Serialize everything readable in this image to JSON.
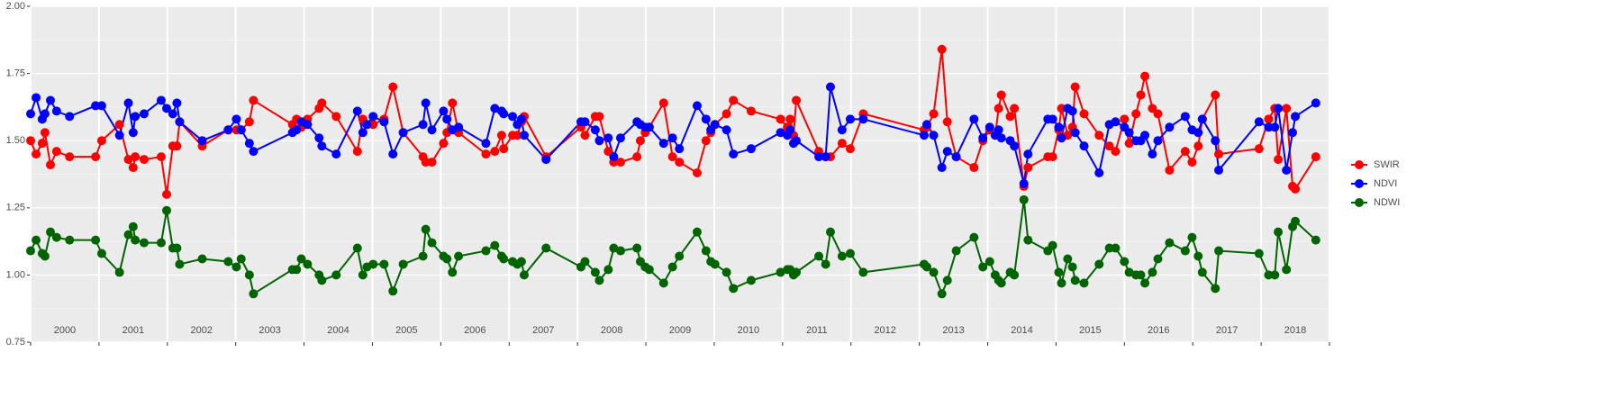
{
  "chart_data": {
    "type": "line",
    "x": [
      2000.0,
      2000.08,
      2000.17,
      2000.21,
      2000.29,
      2000.38,
      2000.57,
      2000.95,
      2001.04,
      2001.3,
      2001.43,
      2001.5,
      2001.53,
      2001.66,
      2001.91,
      2001.99,
      2002.08,
      2002.14,
      2002.18,
      2002.51,
      2002.89,
      2003.01,
      2003.08,
      2003.2,
      2003.26,
      2003.83,
      2003.89,
      2003.96,
      2004.05,
      2004.22,
      2004.26,
      2004.47,
      2004.78,
      2004.86,
      2004.92,
      2005.01,
      2005.17,
      2005.3,
      2005.45,
      2005.74,
      2005.78,
      2005.87,
      2006.04,
      2006.09,
      2006.17,
      2006.26,
      2006.66,
      2006.79,
      2006.89,
      2006.92,
      2007.05,
      2007.12,
      2007.18,
      2007.22,
      2007.54,
      2008.05,
      2008.11,
      2008.26,
      2008.32,
      2008.45,
      2008.53,
      2008.63,
      2008.87,
      2008.92,
      2008.99,
      2009.05,
      2009.26,
      2009.39,
      2009.49,
      2009.75,
      2009.88,
      2009.95,
      2010.01,
      2010.18,
      2010.28,
      2010.54,
      2010.97,
      2011.07,
      2011.11,
      2011.16,
      2011.2,
      2011.53,
      2011.63,
      2011.7,
      2011.87,
      2011.99,
      2012.18,
      2013.07,
      2013.11,
      2013.21,
      2013.33,
      2013.41,
      2013.54,
      2013.8,
      2013.93,
      2014.03,
      2014.11,
      2014.16,
      2014.2,
      2014.33,
      2014.39,
      2014.53,
      2014.59,
      2014.88,
      2014.95,
      2015.04,
      2015.08,
      2015.17,
      2015.24,
      2015.28,
      2015.41,
      2015.63,
      2015.78,
      2015.87,
      2016.0,
      2016.07,
      2016.17,
      2016.24,
      2016.3,
      2016.41,
      2016.49,
      2016.66,
      2016.89,
      2016.99,
      2017.08,
      2017.14,
      2017.33,
      2017.38,
      2017.97,
      2018.11,
      2018.2,
      2018.25,
      2018.37,
      2018.46,
      2018.5,
      2018.8
    ],
    "series": [
      {
        "name": "SWIR",
        "color": "#ff0000",
        "values": [
          1.5,
          1.45,
          1.49,
          1.53,
          1.41,
          1.46,
          1.44,
          1.44,
          1.5,
          1.56,
          1.43,
          1.4,
          1.44,
          1.43,
          1.44,
          1.3,
          1.48,
          1.48,
          1.57,
          1.48,
          1.54,
          1.54,
          1.54,
          1.57,
          1.65,
          1.56,
          1.58,
          1.55,
          1.58,
          1.62,
          1.64,
          1.59,
          1.46,
          1.58,
          1.56,
          1.56,
          1.58,
          1.7,
          1.53,
          1.44,
          1.42,
          1.42,
          1.49,
          1.53,
          1.64,
          1.53,
          1.45,
          1.46,
          1.52,
          1.47,
          1.52,
          1.52,
          1.57,
          1.59,
          1.44,
          1.55,
          1.52,
          1.59,
          1.59,
          1.46,
          1.42,
          1.42,
          1.44,
          1.5,
          1.53,
          1.55,
          1.64,
          1.44,
          1.42,
          1.38,
          1.5,
          1.53,
          1.56,
          1.6,
          1.65,
          1.61,
          1.58,
          1.55,
          1.58,
          1.52,
          1.65,
          1.46,
          1.44,
          1.44,
          1.49,
          1.47,
          1.6,
          1.54,
          1.55,
          1.6,
          1.84,
          1.57,
          1.44,
          1.4,
          1.5,
          1.54,
          1.52,
          1.62,
          1.67,
          1.59,
          1.62,
          1.33,
          1.4,
          1.44,
          1.44,
          1.54,
          1.62,
          1.52,
          1.55,
          1.7,
          1.6,
          1.52,
          1.48,
          1.46,
          1.58,
          1.49,
          1.6,
          1.67,
          1.74,
          1.62,
          1.6,
          1.39,
          1.46,
          1.42,
          1.48,
          1.58,
          1.67,
          1.45,
          1.47,
          1.58,
          1.62,
          1.43,
          1.62,
          1.33,
          1.32,
          1.44
        ]
      },
      {
        "name": "NDVI",
        "color": "#0000ff",
        "values": [
          1.6,
          1.66,
          1.58,
          1.6,
          1.65,
          1.61,
          1.59,
          1.63,
          1.63,
          1.52,
          1.64,
          1.53,
          1.59,
          1.6,
          1.65,
          1.62,
          1.6,
          1.64,
          1.57,
          1.5,
          1.54,
          1.58,
          1.54,
          1.49,
          1.46,
          1.53,
          1.54,
          1.57,
          1.56,
          1.51,
          1.48,
          1.45,
          1.61,
          1.53,
          1.56,
          1.59,
          1.57,
          1.45,
          1.53,
          1.56,
          1.64,
          1.54,
          1.61,
          1.58,
          1.54,
          1.55,
          1.49,
          1.62,
          1.61,
          1.6,
          1.59,
          1.56,
          1.58,
          1.52,
          1.43,
          1.57,
          1.57,
          1.54,
          1.5,
          1.51,
          1.44,
          1.51,
          1.57,
          1.56,
          1.55,
          1.55,
          1.49,
          1.51,
          1.47,
          1.63,
          1.58,
          1.54,
          1.56,
          1.54,
          1.45,
          1.47,
          1.53,
          1.52,
          1.54,
          1.49,
          1.5,
          1.44,
          1.44,
          1.7,
          1.54,
          1.58,
          1.58,
          1.52,
          1.56,
          1.52,
          1.4,
          1.46,
          1.44,
          1.58,
          1.51,
          1.55,
          1.52,
          1.54,
          1.51,
          1.5,
          1.48,
          1.34,
          1.45,
          1.58,
          1.58,
          1.55,
          1.51,
          1.62,
          1.61,
          1.53,
          1.48,
          1.38,
          1.56,
          1.57,
          1.55,
          1.53,
          1.5,
          1.5,
          1.52,
          1.45,
          1.5,
          1.55,
          1.59,
          1.54,
          1.53,
          1.58,
          1.5,
          1.39,
          1.57,
          1.55,
          1.55,
          1.62,
          1.39,
          1.53,
          1.59,
          1.64
        ]
      },
      {
        "name": "NDWI",
        "color": "#006400",
        "values": [
          1.09,
          1.13,
          1.08,
          1.07,
          1.16,
          1.14,
          1.13,
          1.13,
          1.08,
          1.01,
          1.15,
          1.18,
          1.13,
          1.12,
          1.12,
          1.24,
          1.1,
          1.1,
          1.04,
          1.06,
          1.05,
          1.03,
          1.06,
          1.0,
          0.93,
          1.02,
          1.02,
          1.06,
          1.04,
          1.0,
          0.98,
          1.0,
          1.1,
          1.0,
          1.03,
          1.04,
          1.04,
          0.94,
          1.04,
          1.07,
          1.17,
          1.12,
          1.07,
          1.06,
          1.01,
          1.07,
          1.09,
          1.11,
          1.07,
          1.06,
          1.05,
          1.04,
          1.05,
          1.0,
          1.1,
          1.03,
          1.05,
          1.01,
          0.98,
          1.02,
          1.1,
          1.09,
          1.1,
          1.05,
          1.03,
          1.02,
          0.97,
          1.03,
          1.07,
          1.16,
          1.09,
          1.05,
          1.04,
          1.01,
          0.95,
          0.98,
          1.01,
          1.02,
          1.02,
          1.0,
          1.01,
          1.07,
          1.04,
          1.16,
          1.07,
          1.08,
          1.01,
          1.04,
          1.03,
          1.01,
          0.93,
          0.98,
          1.09,
          1.14,
          1.03,
          1.05,
          1.0,
          0.98,
          0.97,
          1.01,
          1.0,
          1.28,
          1.13,
          1.09,
          1.11,
          1.01,
          0.97,
          1.06,
          1.03,
          0.98,
          0.97,
          1.04,
          1.1,
          1.1,
          1.05,
          1.01,
          1.0,
          1.0,
          0.97,
          1.01,
          1.06,
          1.12,
          1.09,
          1.14,
          1.07,
          1.01,
          0.95,
          1.09,
          1.08,
          1.0,
          1.0,
          1.16,
          1.02,
          1.18,
          1.2,
          1.13
        ]
      }
    ],
    "xlim": [
      2000,
      2019
    ],
    "xticks": [
      {
        "value": 2000.5,
        "label": "2000"
      },
      {
        "value": 2001.5,
        "label": "2001"
      },
      {
        "value": 2002.5,
        "label": "2002"
      },
      {
        "value": 2003.5,
        "label": "2003"
      },
      {
        "value": 2004.5,
        "label": "2004"
      },
      {
        "value": 2005.5,
        "label": "2005"
      },
      {
        "value": 2006.5,
        "label": "2006"
      },
      {
        "value": 2007.5,
        "label": "2007"
      },
      {
        "value": 2008.5,
        "label": "2008"
      },
      {
        "value": 2009.5,
        "label": "2009"
      },
      {
        "value": 2010.5,
        "label": "2010"
      },
      {
        "value": 2011.5,
        "label": "2011"
      },
      {
        "value": 2012.5,
        "label": "2012"
      },
      {
        "value": 2013.5,
        "label": "2013"
      },
      {
        "value": 2014.5,
        "label": "2014"
      },
      {
        "value": 2015.5,
        "label": "2015"
      },
      {
        "value": 2016.5,
        "label": "2016"
      },
      {
        "value": 2017.5,
        "label": "2017"
      },
      {
        "value": 2018.5,
        "label": "2018"
      }
    ],
    "ylim": [
      0.75,
      2
    ],
    "yticks": [
      0.75,
      {
        "value": 1,
        "label": "1.00"
      },
      1.25,
      {
        "value": 1.5,
        "label": "1.50"
      },
      1.75,
      {
        "value": 2,
        "label": "2.00"
      }
    ],
    "grid": true,
    "legend": "right"
  }
}
